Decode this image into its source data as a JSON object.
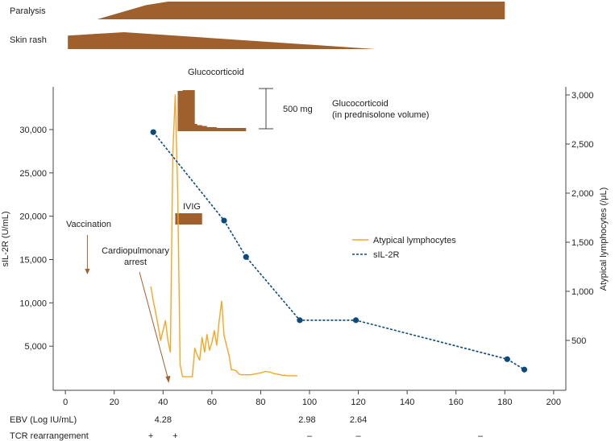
{
  "chart_data": {
    "type": "line",
    "xlim": [
      -5,
      205
    ],
    "xticks": [
      0,
      20,
      40,
      60,
      80,
      100,
      120,
      140,
      160,
      180,
      200
    ],
    "left_axis": {
      "label": "sIL-2R (U/mL)",
      "ylim": [
        0,
        30000
      ],
      "ticks": [
        5000,
        10000,
        15000,
        20000,
        25000,
        30000
      ],
      "tick_labels": [
        "5,000",
        "10,000",
        "15,000",
        "20,000",
        "25,000",
        "30,000"
      ]
    },
    "right_axis": {
      "label": "Atypical lymphocytes (/μL)",
      "ylim": [
        0,
        3000
      ],
      "ticks": [
        500,
        1000,
        1500,
        2000,
        2500,
        3000
      ],
      "tick_labels": [
        "500",
        "1,000",
        "1,500",
        "2,000",
        "2,500",
        "3,000"
      ]
    },
    "series": [
      {
        "name": "Atypical lymphocytes",
        "axis": "right",
        "color": "#F5A623",
        "style": "solid",
        "x": [
          35,
          36,
          37,
          38,
          39,
          40,
          41,
          42,
          43,
          44,
          45,
          46,
          47,
          48,
          49,
          50,
          51,
          52,
          53,
          54,
          55,
          56,
          57,
          58,
          59,
          60,
          61,
          62,
          63,
          64,
          65,
          66,
          67,
          68,
          69,
          70,
          71,
          72,
          73,
          74,
          75,
          76,
          77,
          78,
          79,
          80,
          81,
          82,
          83,
          84,
          85,
          86,
          87,
          88,
          89,
          90,
          91,
          92,
          93,
          94,
          95
        ],
        "y": [
          1050,
          900,
          780,
          650,
          500,
          600,
          700,
          500,
          380,
          2400,
          3000,
          2000,
          250,
          130,
          130,
          130,
          130,
          130,
          420,
          350,
          300,
          530,
          380,
          560,
          400,
          480,
          600,
          450,
          700,
          900,
          550,
          450,
          350,
          200,
          200,
          190,
          160,
          150,
          150,
          150,
          150,
          150,
          155,
          160,
          165,
          170,
          175,
          185,
          180,
          175,
          165,
          160,
          155,
          150,
          145,
          145,
          140,
          140,
          140,
          140,
          140
        ]
      },
      {
        "name": "sIL-2R",
        "axis": "left",
        "color": "#0B4A7E",
        "style": "dashed",
        "x": [
          36,
          65,
          74,
          96,
          119,
          181,
          188
        ],
        "y": [
          29700,
          19500,
          15300,
          8000,
          8000,
          3500,
          2300
        ]
      }
    ],
    "legend": [
      "Atypical lymphocytes",
      "sIL-2R"
    ],
    "legend_position": "center-right",
    "bars_top": [
      {
        "label": "Paralysis",
        "x": [
          13,
          33,
          42,
          180
        ],
        "height_frac": [
          0,
          0.8,
          1,
          1
        ]
      },
      {
        "label": "Skin rash",
        "x": [
          1,
          24,
          127
        ],
        "height_frac": [
          0.8,
          1,
          0
        ]
      }
    ],
    "glucocorticoid": {
      "label": "Glucocorticoid",
      "scale_label": "500 mg",
      "side_label": "Glucocorticoid\n(in prednisolone volume)",
      "x": [
        46,
        47,
        48,
        49,
        50,
        51,
        52,
        53,
        54,
        55,
        56,
        57,
        58,
        59,
        60,
        61,
        62,
        63,
        64,
        65,
        66,
        67,
        68,
        69,
        70,
        71,
        72,
        73
      ],
      "dose_frac": [
        1,
        1,
        1.02,
        1.02,
        1.02,
        1.02,
        1.02,
        0.18,
        0.15,
        0.15,
        0.13,
        0.13,
        0.1,
        0.1,
        0.1,
        0.1,
        0.08,
        0.08,
        0.08,
        0.08,
        0.08,
        0.08,
        0.08,
        0.08,
        0.08,
        0.08,
        0.08,
        0.08
      ]
    },
    "ivig": {
      "label": "IVIG",
      "x": [
        45,
        56
      ]
    },
    "annotations": [
      {
        "label": "Vaccination",
        "x": 9
      },
      {
        "label": "Cardiopulmonary\narrest",
        "x": 42
      }
    ],
    "bottom_rows": [
      {
        "label": "EBV (Log IU/mL)",
        "values": [
          {
            "x": 40,
            "text": "4.28"
          },
          {
            "x": 99,
            "text": "2.98"
          },
          {
            "x": 120,
            "text": "2.64"
          }
        ]
      },
      {
        "label": "TCR rearrangement",
        "values": [
          {
            "x": 35,
            "text": "+"
          },
          {
            "x": 45,
            "text": "+"
          },
          {
            "x": 100,
            "text": "–"
          },
          {
            "x": 120,
            "text": "–"
          },
          {
            "x": 170,
            "text": "–"
          }
        ]
      }
    ]
  }
}
